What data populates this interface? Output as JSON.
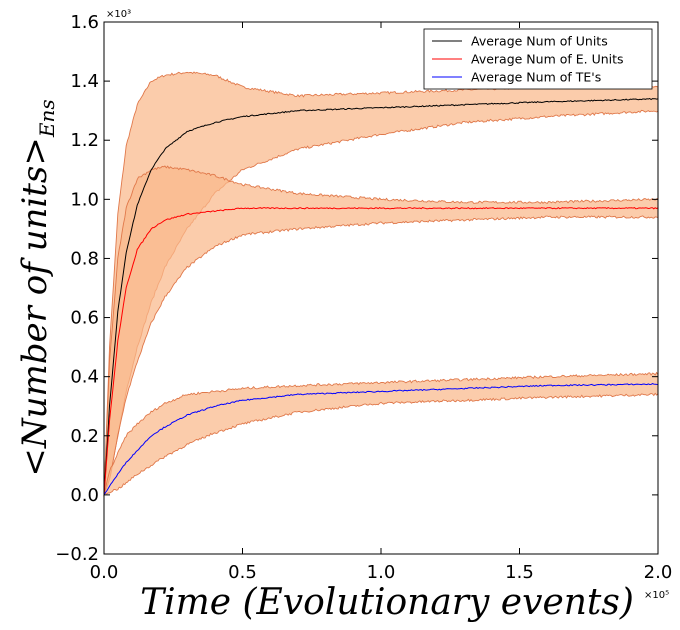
{
  "chart_data": {
    "type": "line",
    "xlabel": "Time (Evolutionary events)",
    "ylabel": "<Number of units>",
    "ylabel_subscript": "Ens",
    "x_exponent": "×10⁵",
    "y_exponent": "×10³",
    "xlim": [
      0.0,
      2.0
    ],
    "ylim": [
      -0.2,
      1.6
    ],
    "x_ticks": [
      "0.0",
      "0.5",
      "1.0",
      "1.5",
      "2.0"
    ],
    "y_ticks": [
      "−0.2",
      "0.0",
      "0.2",
      "0.4",
      "0.6",
      "0.8",
      "1.0",
      "1.2",
      "1.4",
      "1.6"
    ],
    "grid": false,
    "legend_position": "top-right",
    "band_color": "#f9b98a",
    "band_edge_color": "#e0784a",
    "series": [
      {
        "name": "Average Num of Units",
        "color": "#000000",
        "x": [
          0.0,
          0.02,
          0.05,
          0.08,
          0.12,
          0.17,
          0.22,
          0.3,
          0.4,
          0.5,
          0.7,
          1.0,
          1.3,
          1.6,
          2.0
        ],
        "y": [
          0.0,
          0.3,
          0.62,
          0.82,
          0.98,
          1.1,
          1.17,
          1.23,
          1.26,
          1.28,
          1.3,
          1.31,
          1.32,
          1.33,
          1.34
        ],
        "lower": [
          0.0,
          0.05,
          0.2,
          0.35,
          0.5,
          0.65,
          0.77,
          0.9,
          1.02,
          1.1,
          1.17,
          1.22,
          1.26,
          1.28,
          1.3
        ],
        "upper": [
          0.0,
          0.5,
          0.95,
          1.18,
          1.32,
          1.4,
          1.42,
          1.43,
          1.42,
          1.38,
          1.35,
          1.36,
          1.37,
          1.38,
          1.38
        ]
      },
      {
        "name": "Average Num of E. Units",
        "color": "#ff0000",
        "x": [
          0.0,
          0.02,
          0.05,
          0.08,
          0.12,
          0.17,
          0.22,
          0.3,
          0.4,
          0.5,
          0.7,
          1.0,
          1.3,
          1.6,
          2.0
        ],
        "y": [
          0.0,
          0.25,
          0.52,
          0.7,
          0.83,
          0.9,
          0.93,
          0.95,
          0.96,
          0.97,
          0.97,
          0.97,
          0.97,
          0.97,
          0.97
        ],
        "lower": [
          0.0,
          0.05,
          0.2,
          0.33,
          0.45,
          0.58,
          0.67,
          0.77,
          0.84,
          0.88,
          0.9,
          0.92,
          0.93,
          0.94,
          0.94
        ],
        "upper": [
          0.0,
          0.45,
          0.8,
          0.97,
          1.07,
          1.1,
          1.11,
          1.1,
          1.08,
          1.05,
          1.02,
          1.0,
          0.99,
          0.99,
          1.0
        ]
      },
      {
        "name": "Average Num of TE's",
        "color": "#0000ff",
        "x": [
          0.0,
          0.02,
          0.05,
          0.08,
          0.12,
          0.17,
          0.22,
          0.3,
          0.4,
          0.5,
          0.7,
          1.0,
          1.3,
          1.6,
          2.0
        ],
        "y": [
          0.0,
          0.03,
          0.07,
          0.11,
          0.15,
          0.2,
          0.23,
          0.27,
          0.3,
          0.32,
          0.34,
          0.35,
          0.36,
          0.37,
          0.375
        ],
        "lower": [
          0.0,
          0.01,
          0.02,
          0.04,
          0.07,
          0.1,
          0.13,
          0.17,
          0.21,
          0.24,
          0.28,
          0.31,
          0.32,
          0.33,
          0.34
        ],
        "upper": [
          0.0,
          0.08,
          0.14,
          0.2,
          0.24,
          0.28,
          0.31,
          0.34,
          0.35,
          0.36,
          0.37,
          0.38,
          0.39,
          0.4,
          0.41
        ]
      }
    ]
  }
}
